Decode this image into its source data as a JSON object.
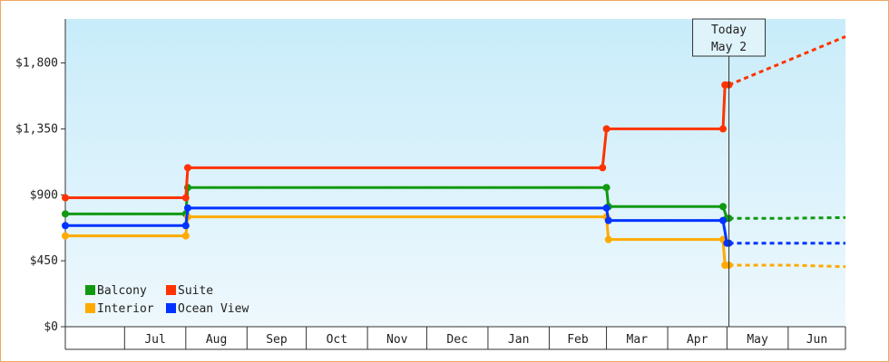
{
  "chart_data": {
    "type": "line",
    "subtype": "step",
    "title": "",
    "xlabel": "",
    "ylabel": "",
    "ylim": [
      0,
      2100
    ],
    "yticks": [
      0,
      450,
      900,
      1350,
      1800
    ],
    "ytick_labels": [
      "$0",
      "$450",
      "$900",
      "$1,350",
      "$1,800"
    ],
    "xlim": [
      "2023-06-01",
      "2024-06-30"
    ],
    "month_labels": [
      "Jul",
      "Aug",
      "Sep",
      "Oct",
      "Nov",
      "Dec",
      "Jan",
      "Feb",
      "Mar",
      "Apr",
      "May",
      "Jun"
    ],
    "grid": false,
    "background": "light blue vertical gradient",
    "legend_position": "bottom-left",
    "today_marker": {
      "line1": "Today",
      "line2": "May 2",
      "date": "2024-05-02"
    },
    "series": [
      {
        "name": "Balcony",
        "color": "#119911",
        "points": [
          [
            "2023-06-01",
            770
          ],
          [
            "2023-08-01",
            770
          ],
          [
            "2023-08-02",
            950
          ],
          [
            "2024-03-01",
            950
          ],
          [
            "2024-03-02",
            820
          ],
          [
            "2024-04-29",
            820
          ],
          [
            "2024-05-01",
            740
          ],
          [
            "2024-05-02",
            740
          ]
        ],
        "forecast": [
          [
            "2024-05-02",
            740
          ],
          [
            "2024-06-01",
            740
          ],
          [
            "2024-06-30",
            745
          ]
        ]
      },
      {
        "name": "Suite",
        "color": "#ff3300",
        "points": [
          [
            "2023-06-01",
            880
          ],
          [
            "2023-08-01",
            880
          ],
          [
            "2023-08-02",
            1085
          ],
          [
            "2024-02-28",
            1085
          ],
          [
            "2024-03-01",
            1350
          ],
          [
            "2024-04-29",
            1350
          ],
          [
            "2024-04-30",
            1650
          ],
          [
            "2024-05-02",
            1650
          ]
        ],
        "forecast": [
          [
            "2024-05-02",
            1650
          ],
          [
            "2024-06-30",
            1980
          ]
        ]
      },
      {
        "name": "Interior",
        "color": "#ffaa00",
        "points": [
          [
            "2023-06-01",
            620
          ],
          [
            "2023-08-01",
            620
          ],
          [
            "2023-08-02",
            750
          ],
          [
            "2024-03-01",
            750
          ],
          [
            "2024-03-02",
            595
          ],
          [
            "2024-04-29",
            595
          ],
          [
            "2024-04-30",
            420
          ],
          [
            "2024-05-02",
            420
          ]
        ],
        "forecast": [
          [
            "2024-05-02",
            420
          ],
          [
            "2024-06-01",
            420
          ],
          [
            "2024-06-30",
            410
          ]
        ]
      },
      {
        "name": "Ocean View",
        "color": "#0033ff",
        "points": [
          [
            "2023-06-01",
            690
          ],
          [
            "2023-08-01",
            690
          ],
          [
            "2023-08-02",
            810
          ],
          [
            "2024-03-01",
            810
          ],
          [
            "2024-03-02",
            725
          ],
          [
            "2024-04-29",
            725
          ],
          [
            "2024-05-01",
            570
          ],
          [
            "2024-05-02",
            570
          ]
        ],
        "forecast": [
          [
            "2024-05-02",
            570
          ],
          [
            "2024-06-30",
            570
          ]
        ]
      }
    ]
  }
}
